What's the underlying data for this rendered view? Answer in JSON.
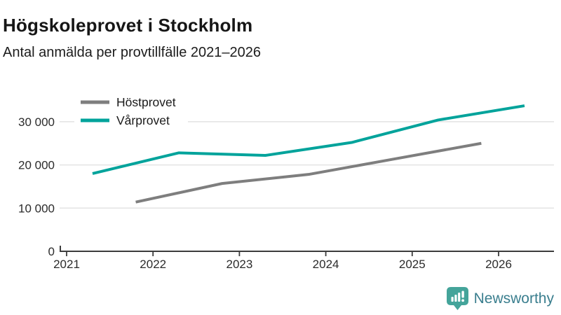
{
  "header": {
    "title": "Högskoleprovet i Stockholm",
    "subtitle": "Antal anmälda per provtillfälle 2021–2026"
  },
  "footer": {
    "brand": "Newsworthy"
  },
  "colors": {
    "hostprovet_line": "#7e7e7e",
    "varprovet_line": "#00a39b",
    "grid": "#e3e3e3",
    "axis": "#3c3c3c",
    "tick_label": "#2b2b2b",
    "legend_label": "#1a1a1a",
    "logo_icon": "#44a49a",
    "logo_text": "#3a7e8e"
  },
  "chart_data": {
    "type": "line",
    "title": "Högskoleprovet i Stockholm",
    "subtitle": "Antal anmälda per provtillfälle 2021–2026",
    "xlabel": "",
    "ylabel": "Antal anmälda",
    "x_ticks": [
      2021,
      2022,
      2023,
      2024,
      2025,
      2026
    ],
    "y_ticks": [
      {
        "value": 0,
        "label": "0"
      },
      {
        "value": 10000,
        "label": "10 000"
      },
      {
        "value": 20000,
        "label": "20 000"
      },
      {
        "value": 30000,
        "label": "30 000"
      }
    ],
    "xlim": [
      2021,
      2026.65
    ],
    "ylim": [
      0,
      39000
    ],
    "grid": "horizontal",
    "legend_position": "top-left",
    "series": [
      {
        "name": "Höstprovet",
        "color": "#7e7e7e",
        "x": [
          2021.8,
          2022.8,
          2023.8,
          2024.8,
          2025.8
        ],
        "values": [
          11400,
          15700,
          17800,
          21400,
          25000
        ]
      },
      {
        "name": "Vårprovet",
        "color": "#00a39b",
        "x": [
          2021.3,
          2022.3,
          2023.3,
          2024.3,
          2025.3,
          2026.3
        ],
        "values": [
          18000,
          22800,
          22200,
          25200,
          30400,
          33700
        ]
      }
    ]
  }
}
